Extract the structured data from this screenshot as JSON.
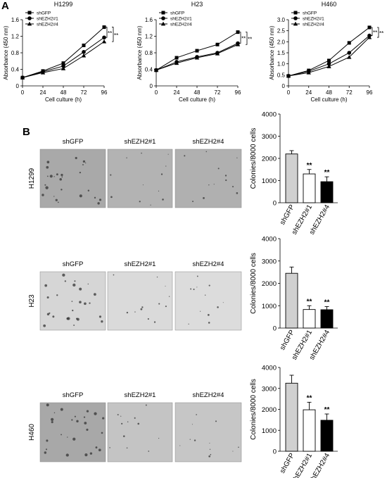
{
  "panel_labels": {
    "a": "A",
    "b": "B"
  },
  "colors": {
    "line": "#000000",
    "micrograph_bg": "#c9c9c9",
    "bar_gray": "#d0d0d0",
    "bar_white": "#ffffff",
    "bar_black": "#000000"
  },
  "chart_data": [
    {
      "type": "line",
      "title": "H1299",
      "xlabel": "Cell culture (h)",
      "ylabel": "Absorbance (450 nm)",
      "x": [
        0,
        24,
        48,
        72,
        96
      ],
      "xticks": [
        0,
        24,
        48,
        72,
        96
      ],
      "ylim": [
        0,
        1.6
      ],
      "yticks": [
        0,
        0.4,
        0.8,
        1.2,
        1.6
      ],
      "legend_position": "top-left",
      "significance": [
        "**",
        "**"
      ],
      "series": [
        {
          "name": "shGFP",
          "marker": "square",
          "values": [
            0.2,
            0.36,
            0.55,
            0.98,
            1.42
          ]
        },
        {
          "name": "shEZH2#1",
          "marker": "circle",
          "values": [
            0.2,
            0.34,
            0.48,
            0.82,
            1.17
          ]
        },
        {
          "name": "shEZH2#4",
          "marker": "triangle",
          "values": [
            0.2,
            0.32,
            0.42,
            0.73,
            1.07
          ]
        }
      ]
    },
    {
      "type": "line",
      "title": "H23",
      "xlabel": "Cell culture (h)",
      "ylabel": "Absorbance (450 nm)",
      "x": [
        0,
        24,
        48,
        72,
        96
      ],
      "xticks": [
        0,
        24,
        48,
        72,
        96
      ],
      "ylim": [
        0,
        1.6
      ],
      "yticks": [
        0,
        0.4,
        0.8,
        1.2,
        1.6
      ],
      "legend_position": "top-left",
      "significance": [
        "**",
        "**"
      ],
      "series": [
        {
          "name": "shGFP",
          "marker": "square",
          "values": [
            0.38,
            0.68,
            0.85,
            1.0,
            1.3
          ]
        },
        {
          "name": "shEZH2#1",
          "marker": "circle",
          "values": [
            0.38,
            0.58,
            0.7,
            0.8,
            1.03
          ]
        },
        {
          "name": "shEZH2#4",
          "marker": "triangle",
          "values": [
            0.38,
            0.55,
            0.68,
            0.78,
            1.0
          ]
        }
      ]
    },
    {
      "type": "line",
      "title": "H460",
      "xlabel": "Cell culture (h)",
      "ylabel": "Absorbance (450 nm)",
      "x": [
        0,
        24,
        48,
        72,
        96
      ],
      "xticks": [
        0,
        24,
        48,
        72,
        96
      ],
      "ylim": [
        0,
        3.0
      ],
      "yticks": [
        0,
        0.5,
        1.0,
        1.5,
        2.0,
        2.5,
        3.0
      ],
      "legend_position": "top-left",
      "significance": [
        "**",
        "**"
      ],
      "series": [
        {
          "name": "shGFP",
          "marker": "square",
          "values": [
            0.45,
            0.7,
            1.15,
            1.95,
            2.65
          ]
        },
        {
          "name": "shEZH2#1",
          "marker": "circle",
          "values": [
            0.45,
            0.66,
            1.0,
            1.5,
            2.28
          ]
        },
        {
          "name": "shEZH2#4",
          "marker": "triangle",
          "values": [
            0.45,
            0.6,
            0.88,
            1.3,
            2.2
          ]
        }
      ]
    },
    {
      "type": "bar",
      "row_label": "H1299",
      "ylabel": "Colonies/8000 cells",
      "categories": [
        "shGFP",
        "shEZH2#1",
        "shEZH2#4"
      ],
      "values": [
        2200,
        1300,
        950
      ],
      "errors": [
        150,
        200,
        220
      ],
      "fills": [
        "#d0d0d0",
        "#ffffff",
        "#000000"
      ],
      "significance": [
        "",
        "**",
        "**"
      ],
      "ylim": [
        0,
        4000
      ],
      "yticks": [
        0,
        1000,
        2000,
        3000,
        4000
      ]
    },
    {
      "type": "bar",
      "row_label": "H23",
      "ylabel": "Colonies/8000 cells",
      "categories": [
        "shGFP",
        "shEZH2#1",
        "shEZH2#4"
      ],
      "values": [
        2450,
        830,
        820
      ],
      "errors": [
        280,
        170,
        140
      ],
      "fills": [
        "#d0d0d0",
        "#ffffff",
        "#000000"
      ],
      "significance": [
        "",
        "**",
        "**"
      ],
      "ylim": [
        0,
        4000
      ],
      "yticks": [
        0,
        1000,
        2000,
        3000,
        4000
      ]
    },
    {
      "type": "bar",
      "row_label": "H460",
      "ylabel": "Colonies/8000 cells",
      "categories": [
        "shGFP",
        "shEZH2#1",
        "shEZH2#4"
      ],
      "values": [
        3250,
        1980,
        1480
      ],
      "errors": [
        380,
        360,
        300
      ],
      "fills": [
        "#d0d0d0",
        "#ffffff",
        "#000000"
      ],
      "significance": [
        "",
        "**",
        "**"
      ],
      "ylim": [
        0,
        4000
      ],
      "yticks": [
        0,
        1000,
        2000,
        3000,
        4000
      ]
    }
  ],
  "micrographs": [
    {
      "row_label": "H1299",
      "labels": [
        "shGFP",
        "shEZH2#1",
        "shEZH2#4"
      ],
      "tone": [
        "#a9a9a9",
        "#b3b3b3",
        "#b0b0b0"
      ]
    },
    {
      "row_label": "H23",
      "labels": [
        "shGFP",
        "shEZH2#1",
        "shEZH2#4"
      ],
      "tone": [
        "#d6d6d6",
        "#dadada",
        "#dcdcdc"
      ]
    },
    {
      "row_label": "H460",
      "labels": [
        "shGFP",
        "shEZH2#1",
        "shEZH2#4"
      ],
      "tone": [
        "#a8a8a8",
        "#c4c4c4",
        "#c6c6c6"
      ]
    }
  ]
}
